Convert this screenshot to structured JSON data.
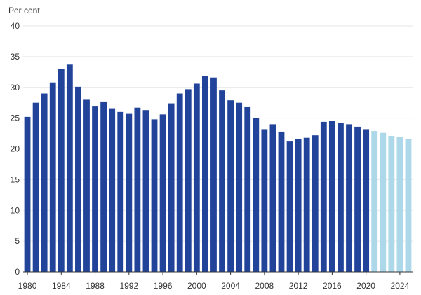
{
  "chart_data": {
    "type": "bar",
    "title": "",
    "ylabel": "Per cent",
    "xlabel": "",
    "ylim": [
      0,
      40
    ],
    "yticks": [
      0,
      5,
      10,
      15,
      20,
      25,
      30,
      35,
      40
    ],
    "xtick_labels": [
      "1980",
      "1984",
      "1988",
      "1992",
      "1996",
      "2000",
      "2004",
      "2008",
      "2012",
      "2016",
      "2020",
      "2024"
    ],
    "grid": true,
    "colors": {
      "actual": "#21449a",
      "forecast": "#add8e9"
    },
    "categories": [
      1980,
      1981,
      1982,
      1983,
      1984,
      1985,
      1986,
      1987,
      1988,
      1989,
      1990,
      1991,
      1992,
      1993,
      1994,
      1995,
      1996,
      1997,
      1998,
      1999,
      2000,
      2001,
      2002,
      2003,
      2004,
      2005,
      2006,
      2007,
      2008,
      2009,
      2010,
      2011,
      2012,
      2013,
      2014,
      2015,
      2016,
      2017,
      2018,
      2019,
      2020,
      2021,
      2022,
      2023,
      2024,
      2025
    ],
    "values": [
      25.2,
      27.5,
      29.0,
      30.8,
      33.0,
      33.7,
      30.1,
      28.1,
      27.0,
      27.7,
      26.6,
      26.0,
      25.8,
      26.7,
      26.3,
      24.8,
      25.6,
      27.4,
      29.0,
      29.7,
      30.6,
      31.8,
      31.6,
      29.5,
      27.9,
      27.5,
      26.9,
      25.0,
      23.2,
      24.0,
      22.8,
      21.3,
      21.6,
      21.8,
      22.2,
      24.4,
      24.6,
      24.2,
      24.0,
      23.6,
      23.2,
      22.9,
      22.6,
      22.1,
      22.0,
      21.6
    ],
    "forecast_from": 2021
  }
}
